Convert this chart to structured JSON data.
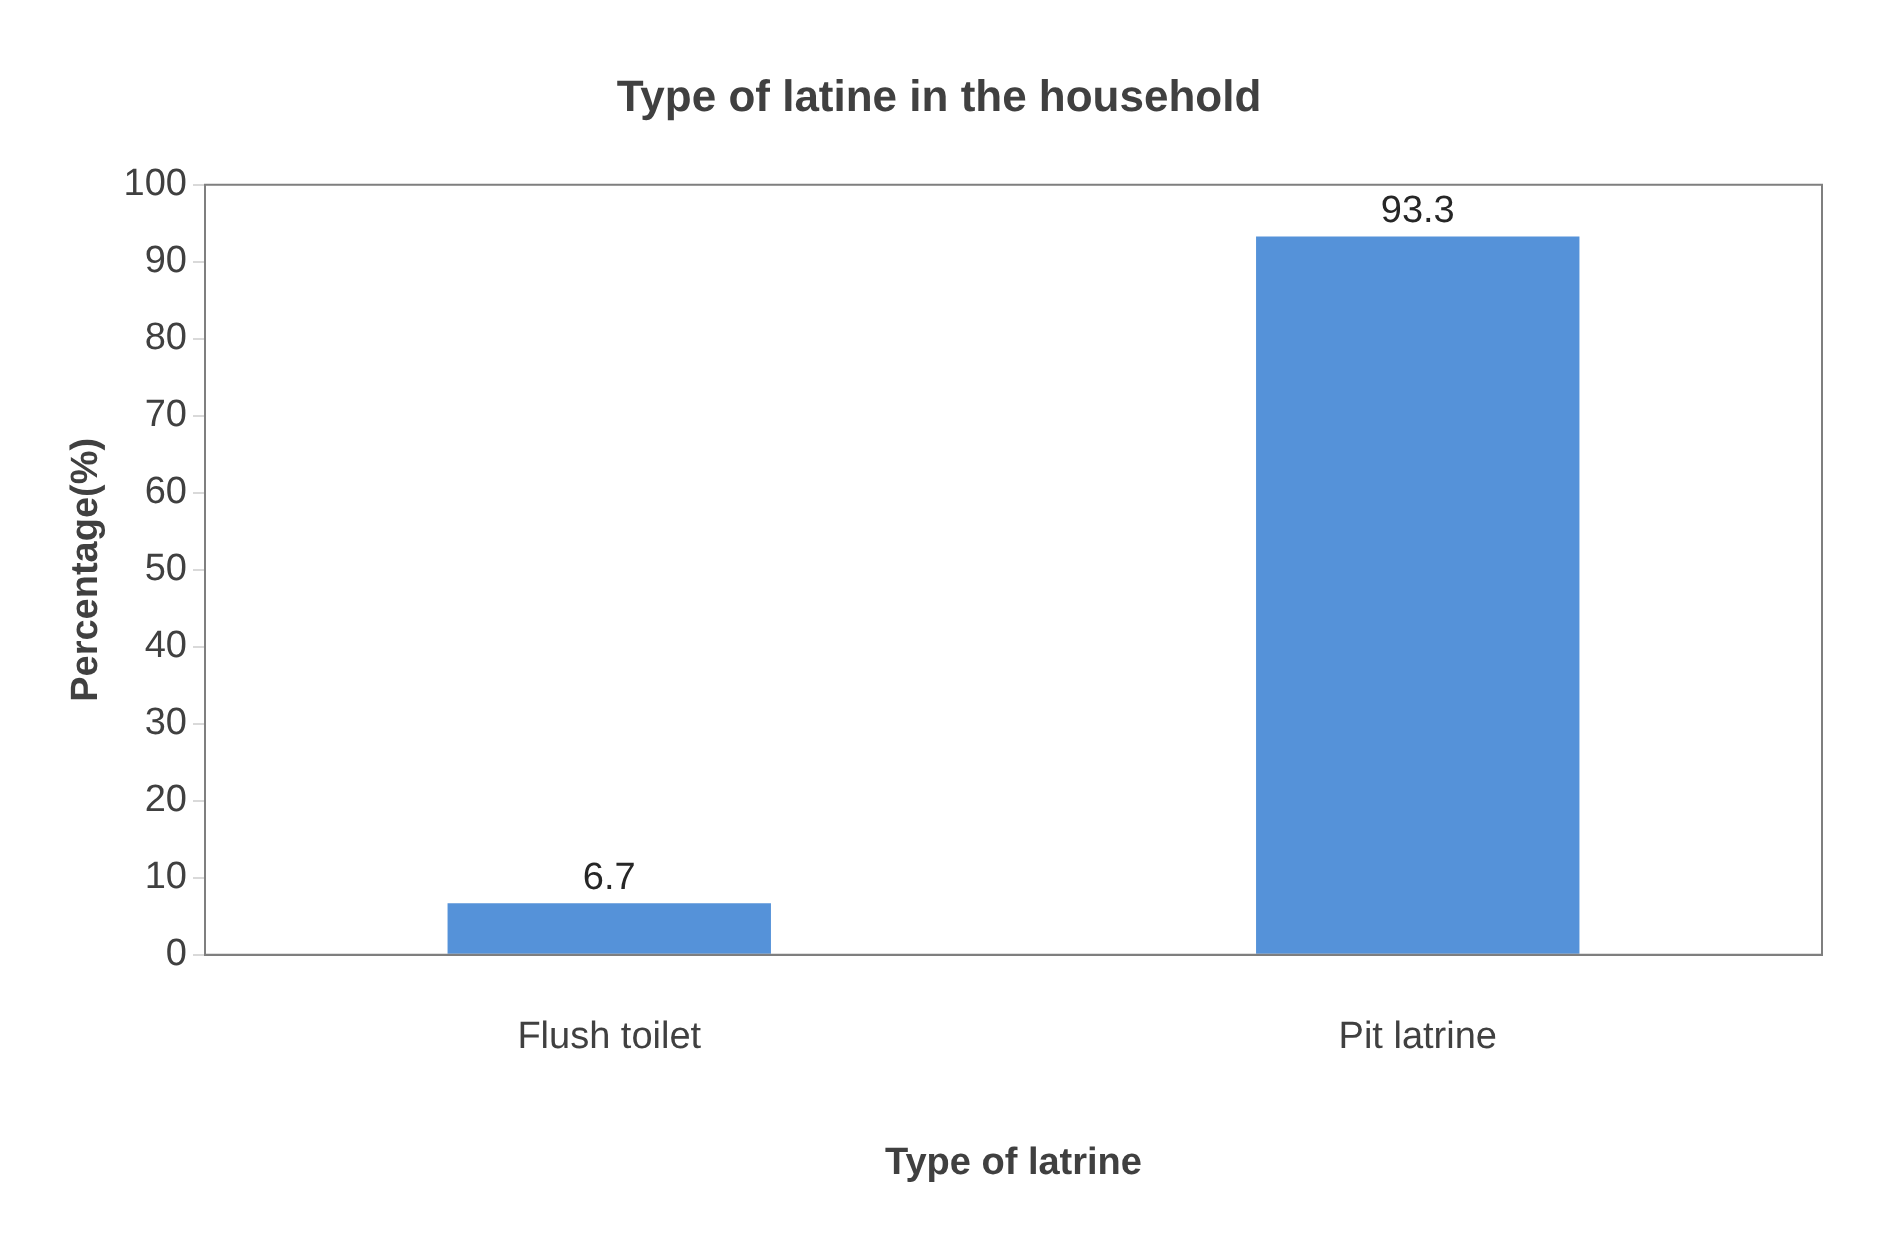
{
  "chart_data": {
    "type": "bar",
    "title": "Type of latine in the household",
    "xlabel": "Type of latrine",
    "ylabel": "Percentage(%)",
    "categories": [
      "Flush toilet",
      "Pit latrine"
    ],
    "values": [
      6.7,
      93.3
    ],
    "color": "#5592d9",
    "ylim": [
      0,
      100
    ],
    "yticks": [
      0,
      10,
      20,
      30,
      40,
      50,
      60,
      70,
      80,
      90,
      100
    ],
    "data_labels": true
  }
}
